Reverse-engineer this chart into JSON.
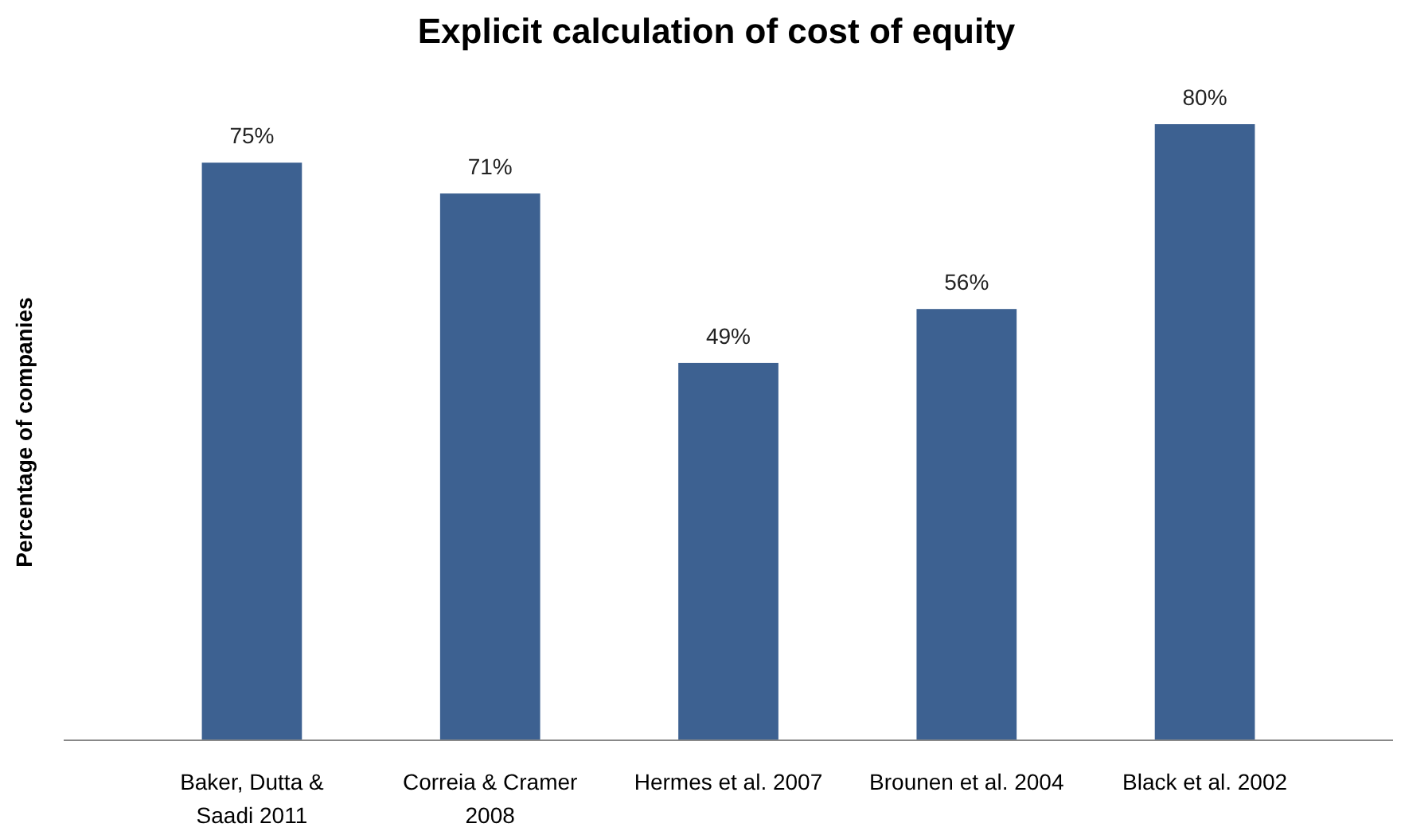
{
  "chart_data": {
    "type": "bar",
    "title": "Explicit calculation of cost of equity",
    "ylabel": "Percentage of companies",
    "categories": [
      "Baker, Dutta & Saadi 2011",
      "Correia & Cramer 2008",
      "Hermes et al. 2007",
      "Brounen et al. 2004",
      "Black et al. 2002"
    ],
    "values": [
      75,
      71,
      49,
      56,
      80
    ],
    "value_labels": [
      "75%",
      "71%",
      "49%",
      "56%",
      "80%"
    ],
    "color": "#3d6191"
  }
}
